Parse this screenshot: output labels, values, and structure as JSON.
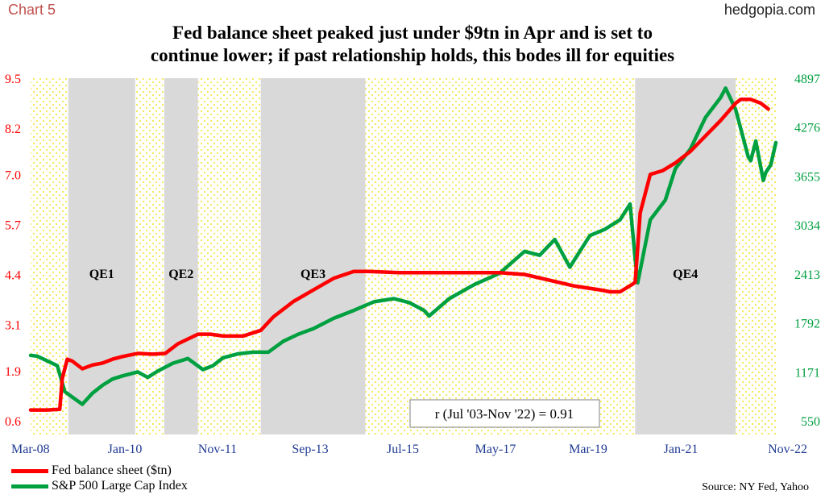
{
  "header": {
    "chart_label": "Chart 5",
    "site": "hedgopia.com",
    "title_line1": "Fed balance sheet peaked just under $9tn in Apr and is set to",
    "title_line2": "continue lower; if past relationship holds, this bodes ill for equities"
  },
  "colors": {
    "fed_line": "#ff0000",
    "spx_line": "#00a040",
    "left_axis": "#ff0000",
    "right_axis": "#00a040",
    "qe_shade": "#d9d9d9",
    "background_dots": "#fff68a"
  },
  "chart_data": {
    "type": "line",
    "x_ticks": [
      "Mar-08",
      "Jan-10",
      "Nov-11",
      "Sep-13",
      "Jul-15",
      "May-17",
      "Mar-19",
      "Jan-21",
      "Nov-22"
    ],
    "x_range": [
      2008.17,
      2023.0
    ],
    "y_left_ticks": [
      "0.6",
      "1.9",
      "3.1",
      "4.4",
      "5.7",
      "7.0",
      "8.2",
      "9.5"
    ],
    "y_left_range": [
      0.6,
      9.5
    ],
    "y_right_ticks": [
      "550",
      "1171",
      "1792",
      "2413",
      "3034",
      "3655",
      "4276",
      "4897"
    ],
    "y_right_range": [
      550,
      4897
    ],
    "shaded_periods": [
      {
        "label": "QE1",
        "start": 2008.92,
        "end": 2010.25
      },
      {
        "label": "QE2",
        "start": 2010.83,
        "end": 2011.5
      },
      {
        "label": "QE3",
        "start": 2012.75,
        "end": 2014.83
      },
      {
        "label": "QE4",
        "start": 2020.2,
        "end": 2022.2
      }
    ],
    "correlation_label": "r (Jul '03-Nov '22) = 0.91",
    "series": [
      {
        "name": "Fed balance sheet ($tn)",
        "axis": "left",
        "color": "#ff0000",
        "x": [
          2008.17,
          2008.5,
          2008.75,
          2008.8,
          2008.9,
          2009.0,
          2009.2,
          2009.4,
          2009.6,
          2009.8,
          2010.0,
          2010.3,
          2010.6,
          2010.85,
          2011.1,
          2011.5,
          2011.75,
          2012.0,
          2012.4,
          2012.75,
          2013.0,
          2013.4,
          2013.8,
          2014.2,
          2014.6,
          2014.9,
          2015.5,
          2016.0,
          2016.5,
          2017.0,
          2017.5,
          2018.0,
          2018.5,
          2019.0,
          2019.5,
          2019.7,
          2019.9,
          2020.15,
          2020.2,
          2020.3,
          2020.5,
          2020.75,
          2021.0,
          2021.3,
          2021.6,
          2021.9,
          2022.2,
          2022.3,
          2022.5,
          2022.7,
          2022.85
        ],
        "y": [
          0.88,
          0.88,
          0.9,
          1.7,
          2.2,
          2.15,
          1.95,
          2.05,
          2.1,
          2.2,
          2.27,
          2.35,
          2.33,
          2.35,
          2.6,
          2.85,
          2.85,
          2.8,
          2.8,
          2.95,
          3.3,
          3.7,
          4.0,
          4.3,
          4.48,
          4.48,
          4.45,
          4.45,
          4.45,
          4.45,
          4.45,
          4.4,
          4.25,
          4.1,
          4.0,
          3.95,
          3.95,
          4.15,
          4.2,
          6.0,
          7.0,
          7.1,
          7.3,
          7.6,
          8.0,
          8.4,
          8.85,
          8.95,
          8.95,
          8.85,
          8.7
        ]
      },
      {
        "name": "S&P 500 Large Cap Index",
        "axis": "right",
        "color": "#00a040",
        "x": [
          2008.17,
          2008.3,
          2008.5,
          2008.7,
          2008.85,
          2009.0,
          2009.2,
          2009.4,
          2009.6,
          2009.8,
          2010.0,
          2010.3,
          2010.5,
          2010.7,
          2011.0,
          2011.3,
          2011.6,
          2011.8,
          2012.0,
          2012.3,
          2012.6,
          2012.9,
          2013.2,
          2013.5,
          2013.8,
          2014.2,
          2014.6,
          2015.0,
          2015.4,
          2015.7,
          2016.0,
          2016.1,
          2016.5,
          2017.0,
          2017.5,
          2018.0,
          2018.3,
          2018.6,
          2018.9,
          2019.0,
          2019.3,
          2019.6,
          2019.9,
          2020.1,
          2020.2,
          2020.25,
          2020.5,
          2020.8,
          2021.0,
          2021.3,
          2021.6,
          2021.9,
          2022.0,
          2022.2,
          2022.45,
          2022.5,
          2022.6,
          2022.75,
          2022.8,
          2022.9,
          2023.0
        ],
        "y": [
          1380,
          1370,
          1310,
          1250,
          920,
          850,
          760,
          900,
          1000,
          1080,
          1120,
          1170,
          1100,
          1180,
          1280,
          1340,
          1200,
          1250,
          1350,
          1400,
          1420,
          1420,
          1560,
          1650,
          1720,
          1850,
          1950,
          2060,
          2100,
          2050,
          1950,
          1880,
          2100,
          2280,
          2420,
          2700,
          2650,
          2850,
          2500,
          2600,
          2900,
          2980,
          3100,
          3300,
          2600,
          2300,
          3100,
          3350,
          3750,
          4000,
          4400,
          4650,
          4770,
          4500,
          3900,
          3850,
          4100,
          3600,
          3700,
          3800,
          4080
        ]
      }
    ],
    "legend_position": "bottom-left"
  },
  "source": "Source: NY Fed, Yahoo"
}
